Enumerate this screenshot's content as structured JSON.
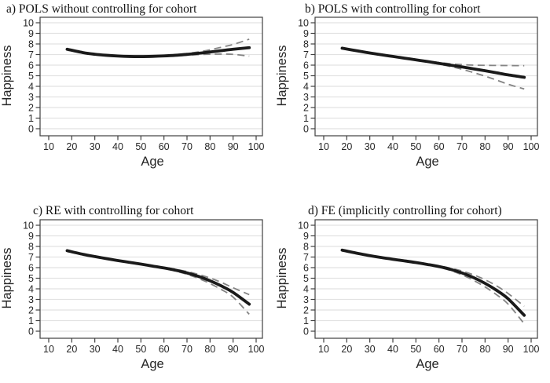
{
  "figure": {
    "background": "#ffffff",
    "colors": {
      "solid_line": "#1a1a1a",
      "ci_line": "#848484",
      "gridline": "#e2e2e2",
      "axis": "#404040",
      "text": "#262626"
    }
  },
  "chart_data": [
    {
      "type": "line",
      "panel": "a",
      "title": "a) POLS without controlling for cohort",
      "xlabel": "Age",
      "ylabel": "Happiness",
      "xlim": [
        10,
        100
      ],
      "ylim": [
        0,
        10
      ],
      "xticks": [
        10,
        20,
        30,
        40,
        50,
        60,
        70,
        80,
        90,
        100
      ],
      "yticks": [
        0,
        1,
        2,
        3,
        4,
        5,
        6,
        7,
        8,
        9,
        10
      ],
      "grid": "horizontal",
      "legend": "none",
      "x": [
        18,
        25,
        30,
        35,
        40,
        45,
        50,
        55,
        60,
        65,
        70,
        75,
        80,
        85,
        90,
        97
      ],
      "series": [
        {
          "name": "estimate",
          "style": "solid",
          "values": [
            7.5,
            7.18,
            7.03,
            6.93,
            6.86,
            6.82,
            6.81,
            6.83,
            6.87,
            6.93,
            7.02,
            7.12,
            7.24,
            7.37,
            7.5,
            7.65
          ]
        },
        {
          "name": "ci-upper",
          "style": "dashed",
          "values": [
            7.55,
            7.22,
            7.07,
            6.96,
            6.89,
            6.85,
            6.84,
            6.86,
            6.91,
            6.99,
            7.1,
            7.25,
            7.45,
            7.7,
            7.95,
            8.45
          ]
        },
        {
          "name": "ci-lower",
          "style": "dashed",
          "values": [
            7.45,
            7.14,
            6.99,
            6.9,
            6.83,
            6.79,
            6.78,
            6.8,
            6.83,
            6.88,
            6.94,
            6.99,
            7.03,
            7.04,
            7.02,
            6.85
          ]
        }
      ]
    },
    {
      "type": "line",
      "panel": "b",
      "title": "b) POLS with controlling for cohort",
      "xlabel": "Age",
      "ylabel": "Happiness",
      "xlim": [
        10,
        100
      ],
      "ylim": [
        0,
        10
      ],
      "xticks": [
        10,
        20,
        30,
        40,
        50,
        60,
        70,
        80,
        90,
        100
      ],
      "yticks": [
        0,
        1,
        2,
        3,
        4,
        5,
        6,
        7,
        8,
        9,
        10
      ],
      "grid": "horizontal",
      "legend": "none",
      "x": [
        18,
        25,
        30,
        35,
        40,
        45,
        50,
        55,
        60,
        65,
        70,
        75,
        80,
        85,
        90,
        97
      ],
      "series": [
        {
          "name": "estimate",
          "style": "solid",
          "values": [
            7.6,
            7.33,
            7.15,
            6.98,
            6.82,
            6.66,
            6.5,
            6.34,
            6.17,
            6.0,
            5.83,
            5.65,
            5.47,
            5.28,
            5.08,
            4.85
          ]
        },
        {
          "name": "ci-upper",
          "style": "dashed",
          "values": [
            7.65,
            7.37,
            7.19,
            7.02,
            6.86,
            6.7,
            6.55,
            6.4,
            6.25,
            6.13,
            6.05,
            6.0,
            5.98,
            5.97,
            5.96,
            5.95
          ]
        },
        {
          "name": "ci-lower",
          "style": "dashed",
          "values": [
            7.55,
            7.29,
            7.11,
            6.94,
            6.78,
            6.62,
            6.45,
            6.28,
            6.09,
            5.87,
            5.61,
            5.3,
            4.96,
            4.59,
            4.2,
            3.75
          ]
        }
      ]
    },
    {
      "type": "line",
      "panel": "c",
      "title": "c) RE with controlling for cohort",
      "xlabel": "Age",
      "ylabel": "Happiness",
      "xlim": [
        10,
        100
      ],
      "ylim": [
        0,
        10
      ],
      "xticks": [
        10,
        20,
        30,
        40,
        50,
        60,
        70,
        80,
        90,
        100
      ],
      "yticks": [
        0,
        1,
        2,
        3,
        4,
        5,
        6,
        7,
        8,
        9,
        10
      ],
      "grid": "horizontal",
      "legend": "none",
      "x": [
        18,
        25,
        30,
        35,
        40,
        45,
        50,
        55,
        60,
        65,
        70,
        75,
        80,
        85,
        90,
        97
      ],
      "series": [
        {
          "name": "estimate",
          "style": "solid",
          "values": [
            7.6,
            7.25,
            7.05,
            6.85,
            6.67,
            6.5,
            6.33,
            6.15,
            5.97,
            5.76,
            5.5,
            5.17,
            4.76,
            4.26,
            3.66,
            2.55
          ]
        },
        {
          "name": "ci-upper",
          "style": "dashed",
          "values": [
            7.65,
            7.29,
            7.09,
            6.89,
            6.71,
            6.54,
            6.37,
            6.2,
            6.03,
            5.85,
            5.63,
            5.36,
            5.02,
            4.6,
            4.1,
            3.45
          ]
        },
        {
          "name": "ci-lower",
          "style": "dashed",
          "values": [
            7.55,
            7.21,
            7.01,
            6.81,
            6.63,
            6.46,
            6.29,
            6.1,
            5.91,
            5.67,
            5.37,
            4.98,
            4.5,
            3.92,
            3.22,
            1.6
          ]
        }
      ]
    },
    {
      "type": "line",
      "panel": "d",
      "title": "d) FE (implicitly controlling for cohort)",
      "xlabel": "Age",
      "ylabel": "Happiness",
      "xlim": [
        10,
        100
      ],
      "ylim": [
        0,
        10
      ],
      "xticks": [
        10,
        20,
        30,
        40,
        50,
        60,
        70,
        80,
        90,
        100
      ],
      "yticks": [
        0,
        1,
        2,
        3,
        4,
        5,
        6,
        7,
        8,
        9,
        10
      ],
      "grid": "horizontal",
      "legend": "none",
      "x": [
        18,
        25,
        30,
        35,
        40,
        45,
        50,
        55,
        60,
        65,
        70,
        75,
        80,
        85,
        90,
        97
      ],
      "series": [
        {
          "name": "estimate",
          "style": "solid",
          "values": [
            7.65,
            7.33,
            7.13,
            6.95,
            6.79,
            6.64,
            6.48,
            6.3,
            6.1,
            5.84,
            5.5,
            5.06,
            4.52,
            3.86,
            3.06,
            1.5
          ]
        },
        {
          "name": "ci-upper",
          "style": "dashed",
          "values": [
            7.7,
            7.37,
            7.17,
            6.99,
            6.83,
            6.68,
            6.52,
            6.35,
            6.17,
            5.95,
            5.68,
            5.32,
            4.86,
            4.28,
            3.56,
            2.35
          ]
        },
        {
          "name": "ci-lower",
          "style": "dashed",
          "values": [
            7.6,
            7.29,
            7.09,
            6.91,
            6.75,
            6.6,
            6.44,
            6.25,
            6.03,
            5.73,
            5.32,
            4.8,
            4.18,
            3.44,
            2.56,
            0.7
          ]
        }
      ]
    }
  ]
}
